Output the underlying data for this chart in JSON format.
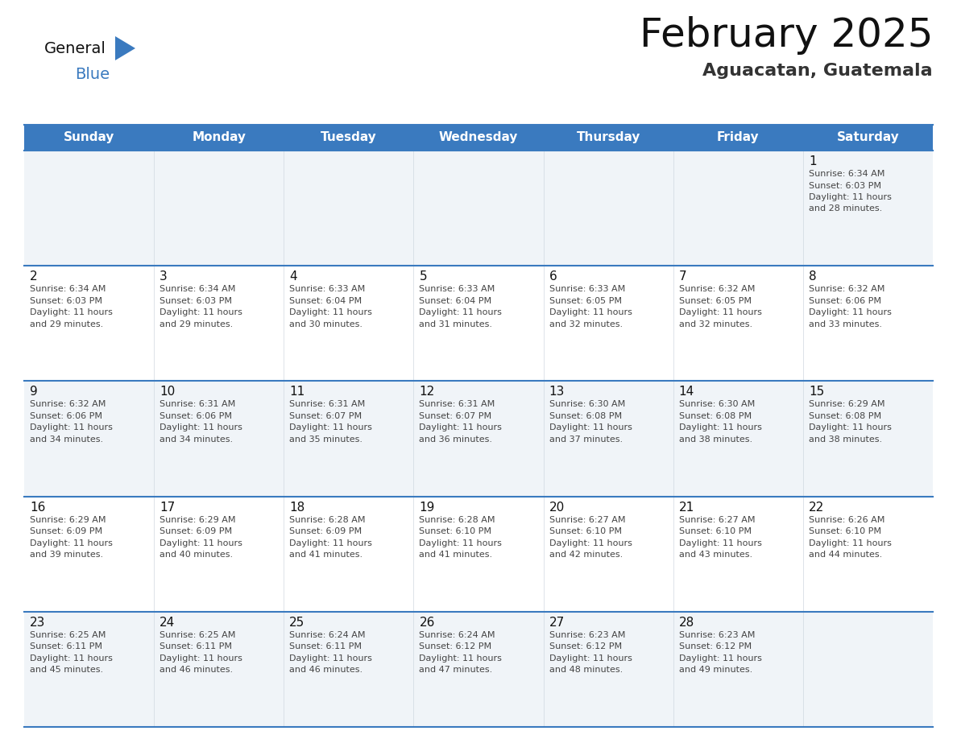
{
  "title": "February 2025",
  "subtitle": "Aguacatan, Guatemala",
  "header_color": "#3a7abf",
  "header_text_color": "#ffffff",
  "cell_bg_even": "#f0f4f8",
  "cell_bg_odd": "#ffffff",
  "border_color": "#3a7abf",
  "title_color": "#1a1a1a",
  "subtitle_color": "#333333",
  "day_names": [
    "Sunday",
    "Monday",
    "Tuesday",
    "Wednesday",
    "Thursday",
    "Friday",
    "Saturday"
  ],
  "days": [
    {
      "day": 1,
      "col": 6,
      "row": 0,
      "sunrise": "6:34 AM",
      "sunset": "6:03 PM",
      "daylight": "11 hours and 28 minutes."
    },
    {
      "day": 2,
      "col": 0,
      "row": 1,
      "sunrise": "6:34 AM",
      "sunset": "6:03 PM",
      "daylight": "11 hours and 29 minutes."
    },
    {
      "day": 3,
      "col": 1,
      "row": 1,
      "sunrise": "6:34 AM",
      "sunset": "6:03 PM",
      "daylight": "11 hours and 29 minutes."
    },
    {
      "day": 4,
      "col": 2,
      "row": 1,
      "sunrise": "6:33 AM",
      "sunset": "6:04 PM",
      "daylight": "11 hours and 30 minutes."
    },
    {
      "day": 5,
      "col": 3,
      "row": 1,
      "sunrise": "6:33 AM",
      "sunset": "6:04 PM",
      "daylight": "11 hours and 31 minutes."
    },
    {
      "day": 6,
      "col": 4,
      "row": 1,
      "sunrise": "6:33 AM",
      "sunset": "6:05 PM",
      "daylight": "11 hours and 32 minutes."
    },
    {
      "day": 7,
      "col": 5,
      "row": 1,
      "sunrise": "6:32 AM",
      "sunset": "6:05 PM",
      "daylight": "11 hours and 32 minutes."
    },
    {
      "day": 8,
      "col": 6,
      "row": 1,
      "sunrise": "6:32 AM",
      "sunset": "6:06 PM",
      "daylight": "11 hours and 33 minutes."
    },
    {
      "day": 9,
      "col": 0,
      "row": 2,
      "sunrise": "6:32 AM",
      "sunset": "6:06 PM",
      "daylight": "11 hours and 34 minutes."
    },
    {
      "day": 10,
      "col": 1,
      "row": 2,
      "sunrise": "6:31 AM",
      "sunset": "6:06 PM",
      "daylight": "11 hours and 34 minutes."
    },
    {
      "day": 11,
      "col": 2,
      "row": 2,
      "sunrise": "6:31 AM",
      "sunset": "6:07 PM",
      "daylight": "11 hours and 35 minutes."
    },
    {
      "day": 12,
      "col": 3,
      "row": 2,
      "sunrise": "6:31 AM",
      "sunset": "6:07 PM",
      "daylight": "11 hours and 36 minutes."
    },
    {
      "day": 13,
      "col": 4,
      "row": 2,
      "sunrise": "6:30 AM",
      "sunset": "6:08 PM",
      "daylight": "11 hours and 37 minutes."
    },
    {
      "day": 14,
      "col": 5,
      "row": 2,
      "sunrise": "6:30 AM",
      "sunset": "6:08 PM",
      "daylight": "11 hours and 38 minutes."
    },
    {
      "day": 15,
      "col": 6,
      "row": 2,
      "sunrise": "6:29 AM",
      "sunset": "6:08 PM",
      "daylight": "11 hours and 38 minutes."
    },
    {
      "day": 16,
      "col": 0,
      "row": 3,
      "sunrise": "6:29 AM",
      "sunset": "6:09 PM",
      "daylight": "11 hours and 39 minutes."
    },
    {
      "day": 17,
      "col": 1,
      "row": 3,
      "sunrise": "6:29 AM",
      "sunset": "6:09 PM",
      "daylight": "11 hours and 40 minutes."
    },
    {
      "day": 18,
      "col": 2,
      "row": 3,
      "sunrise": "6:28 AM",
      "sunset": "6:09 PM",
      "daylight": "11 hours and 41 minutes."
    },
    {
      "day": 19,
      "col": 3,
      "row": 3,
      "sunrise": "6:28 AM",
      "sunset": "6:10 PM",
      "daylight": "11 hours and 41 minutes."
    },
    {
      "day": 20,
      "col": 4,
      "row": 3,
      "sunrise": "6:27 AM",
      "sunset": "6:10 PM",
      "daylight": "11 hours and 42 minutes."
    },
    {
      "day": 21,
      "col": 5,
      "row": 3,
      "sunrise": "6:27 AM",
      "sunset": "6:10 PM",
      "daylight": "11 hours and 43 minutes."
    },
    {
      "day": 22,
      "col": 6,
      "row": 3,
      "sunrise": "6:26 AM",
      "sunset": "6:10 PM",
      "daylight": "11 hours and 44 minutes."
    },
    {
      "day": 23,
      "col": 0,
      "row": 4,
      "sunrise": "6:25 AM",
      "sunset": "6:11 PM",
      "daylight": "11 hours and 45 minutes."
    },
    {
      "day": 24,
      "col": 1,
      "row": 4,
      "sunrise": "6:25 AM",
      "sunset": "6:11 PM",
      "daylight": "11 hours and 46 minutes."
    },
    {
      "day": 25,
      "col": 2,
      "row": 4,
      "sunrise": "6:24 AM",
      "sunset": "6:11 PM",
      "daylight": "11 hours and 46 minutes."
    },
    {
      "day": 26,
      "col": 3,
      "row": 4,
      "sunrise": "6:24 AM",
      "sunset": "6:12 PM",
      "daylight": "11 hours and 47 minutes."
    },
    {
      "day": 27,
      "col": 4,
      "row": 4,
      "sunrise": "6:23 AM",
      "sunset": "6:12 PM",
      "daylight": "11 hours and 48 minutes."
    },
    {
      "day": 28,
      "col": 5,
      "row": 4,
      "sunrise": "6:23 AM",
      "sunset": "6:12 PM",
      "daylight": "11 hours and 49 minutes."
    }
  ],
  "num_rows": 5,
  "num_cols": 7,
  "fig_width": 11.88,
  "fig_height": 9.18
}
